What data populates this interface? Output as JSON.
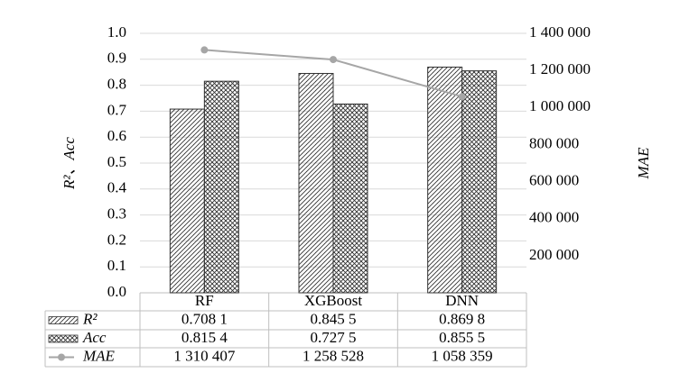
{
  "chart_data": {
    "type": "bar",
    "categories": [
      "RF",
      "XGBoost",
      "DNN"
    ],
    "series": [
      {
        "name": "R²",
        "color": "#333333",
        "pattern": "diagonal",
        "values": [
          0.7081,
          0.8455,
          0.8698
        ],
        "value_labels": [
          "0.708 1",
          "0.845 5",
          "0.869 8"
        ]
      },
      {
        "name": "Acc",
        "color": "#333333",
        "pattern": "crosshatch",
        "values": [
          0.8154,
          0.7275,
          0.8555
        ],
        "value_labels": [
          "0.815 4",
          "0.727 5",
          "0.855 5"
        ]
      },
      {
        "name": "MAE",
        "color": "#a6a6a6",
        "type": "line",
        "axis": "y2",
        "values": [
          1310407,
          1258528,
          1058359
        ],
        "value_labels": [
          "1 310 407",
          "1 258 528",
          "1 058 359"
        ]
      }
    ],
    "y_label": "R²、Acc",
    "y2_label": "MAE",
    "ylim": [
      0,
      1
    ],
    "yticks": [
      {
        "value": 0,
        "label": "0.0"
      },
      0.1,
      0.2,
      0.3,
      0.4,
      0.5,
      0.6,
      0.7,
      0.8,
      0.9,
      {
        "value": 1,
        "label": "1.0"
      }
    ],
    "y2lim": [
      0,
      1400000
    ],
    "y2ticks": [
      {
        "value": 200000,
        "label": "200 000"
      },
      {
        "value": 400000,
        "label": "400 000"
      },
      {
        "value": 600000,
        "label": "600 000"
      },
      {
        "value": 800000,
        "label": "800 000"
      },
      {
        "value": 1000000,
        "label": "1 000 000"
      },
      {
        "value": 1200000,
        "label": "1 200 000"
      },
      {
        "value": 1400000,
        "label": "1 400 000"
      }
    ],
    "grid": true,
    "legend": "table"
  }
}
